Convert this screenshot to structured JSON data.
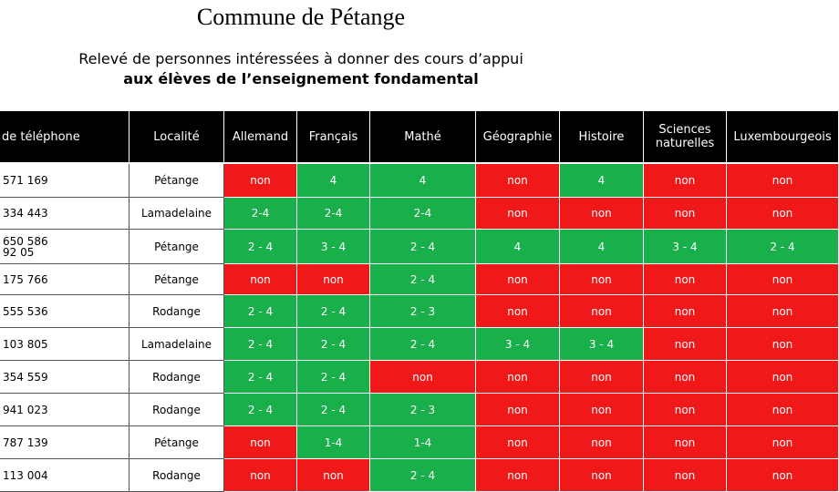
{
  "header": {
    "title": "Commune de Pétange",
    "subtitle": "Relevé de personnes intéressées à donner des cours d’appui",
    "subtitle_bold": "aux élèves de l’enseignement fondamental"
  },
  "colors": {
    "yes": "#19b04b",
    "no": "#f01818",
    "header_bg": "#000000"
  },
  "table": {
    "columns": [
      "de téléphone",
      "Localité",
      "Allemand",
      "Français",
      "Mathé",
      "Géographie",
      "Histoire",
      "Sciences naturelles",
      "Luxembourgeois"
    ],
    "rows": [
      {
        "phone": [
          "571 169"
        ],
        "locality": "Pétange",
        "values": [
          "non",
          "4",
          "4",
          "non",
          "4",
          "non",
          "non"
        ]
      },
      {
        "phone": [
          "334 443"
        ],
        "locality": "Lamadelaine",
        "values": [
          "2-4",
          "2-4",
          "2-4",
          "non",
          "non",
          "non",
          "non"
        ]
      },
      {
        "phone": [
          "650 586",
          "92 05"
        ],
        "locality": "Pétange",
        "values": [
          "2 - 4",
          "3 - 4",
          "2 - 4",
          "4",
          "4",
          "3 - 4",
          "2 - 4"
        ]
      },
      {
        "phone": [
          "175 766"
        ],
        "locality": "Pétange",
        "values": [
          "non",
          "non",
          "2 - 4",
          "non",
          "non",
          "non",
          "non"
        ]
      },
      {
        "phone": [
          "555 536"
        ],
        "locality": "Rodange",
        "values": [
          "2 - 4",
          "2 - 4",
          "2 - 3",
          "non",
          "non",
          "non",
          "non"
        ]
      },
      {
        "phone": [
          "103 805"
        ],
        "locality": "Lamadelaine",
        "values": [
          "2 - 4",
          "2 - 4",
          "2 - 4",
          "3 - 4",
          "3 - 4",
          "non",
          "non"
        ]
      },
      {
        "phone": [
          "354 559"
        ],
        "locality": "Rodange",
        "values": [
          "2 - 4",
          "2 - 4",
          "non",
          "non",
          "non",
          "non",
          "non"
        ]
      },
      {
        "phone": [
          "941 023"
        ],
        "locality": "Rodange",
        "values": [
          "2 - 4",
          "2 - 4",
          "2 - 3",
          "non",
          "non",
          "non",
          "non"
        ]
      },
      {
        "phone": [
          "787 139"
        ],
        "locality": "Pétange",
        "values": [
          "non",
          "1-4",
          "1-4",
          "non",
          "non",
          "non",
          "non"
        ]
      },
      {
        "phone": [
          "113 004"
        ],
        "locality": "Rodange",
        "values": [
          "non",
          "non",
          "2 - 4",
          "non",
          "non",
          "non",
          "non"
        ]
      }
    ]
  }
}
